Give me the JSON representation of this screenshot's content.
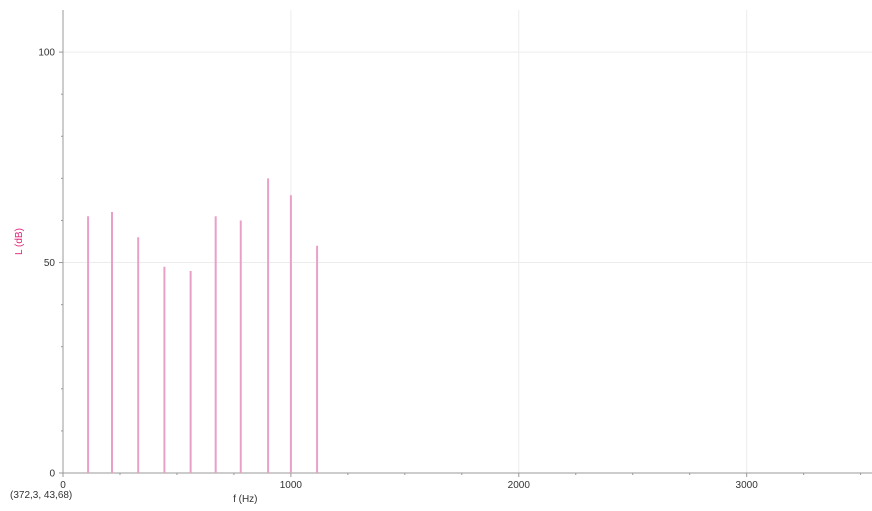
{
  "chart_data": {
    "type": "bar",
    "xlabel": "f (Hz)",
    "ylabel": "L (dB)",
    "xlim": [
      0,
      3550
    ],
    "ylim": [
      0,
      110
    ],
    "xticks": [
      0,
      1000,
      2000,
      3000
    ],
    "yticks": [
      0,
      50,
      100
    ],
    "x_tick_labels": [
      "0",
      "1000",
      "2000",
      "3000"
    ],
    "y_tick_labels": [
      "0",
      "50",
      "100"
    ],
    "grid": true,
    "series": [
      {
        "x": [
          110,
          215,
          330,
          445,
          560,
          670,
          780,
          900,
          1000,
          1115
        ],
        "values": [
          61,
          62,
          56,
          49,
          48,
          61,
          60,
          70,
          66,
          54
        ]
      }
    ],
    "colors": {
      "bars": "#e8a0c8",
      "ylabel": "#e0207a",
      "grid": "#ececec",
      "axis": "#999999"
    }
  },
  "cursor_readout": "(372,3, 43,68)"
}
